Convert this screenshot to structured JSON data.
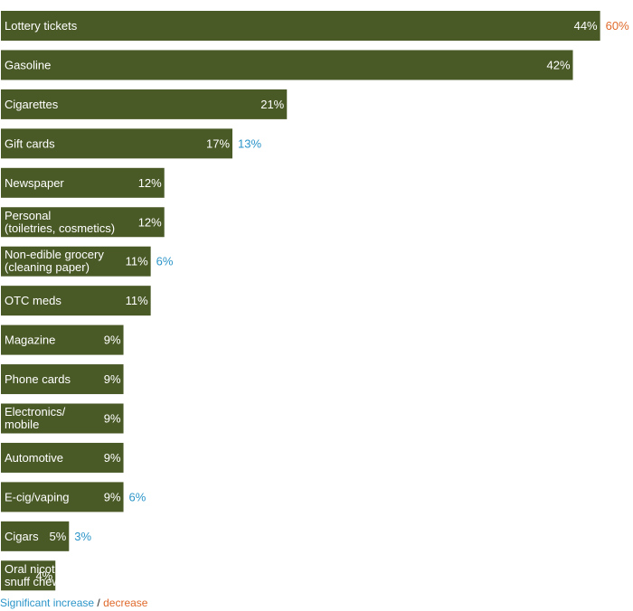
{
  "chart_data": {
    "type": "bar",
    "orientation": "horizontal",
    "xlim": [
      0,
      46
    ],
    "categories": [
      "Lottery tickets",
      "Gasoline",
      "Cigarettes",
      "Gift cards",
      "Newspaper",
      "Personal\n(toiletries, cosmetics)",
      "Non-edible grocery\n(cleaning paper)",
      "OTC meds",
      "Magazine",
      "Phone cards",
      "Electronics/\nmobile",
      "Automotive",
      "E-cig/vaping",
      "Cigars",
      "Oral nicotine,\nsnuff chew"
    ],
    "values": [
      44,
      42,
      21,
      17,
      12,
      12,
      11,
      11,
      9,
      9,
      9,
      9,
      9,
      5,
      4
    ],
    "value_labels": [
      "44%",
      "42%",
      "21%",
      "17%",
      "12%",
      "12%",
      "11%",
      "11%",
      "9%",
      "9%",
      "9%",
      "9%",
      "9%",
      "5%",
      "4%"
    ],
    "changes": [
      {
        "label": "60%",
        "kind": "decrease"
      },
      null,
      null,
      {
        "label": "13%",
        "kind": "increase"
      },
      null,
      null,
      {
        "label": "6%",
        "kind": "increase"
      },
      null,
      null,
      null,
      null,
      null,
      {
        "label": "6%",
        "kind": "increase"
      },
      {
        "label": "3%",
        "kind": "increase"
      },
      null
    ],
    "legend": {
      "increase": "Significant increase",
      "separator": "/",
      "decrease": "decrease"
    },
    "colors": {
      "bar": "#4a5a27",
      "bar_text": "#ffffff",
      "increase": "#2c95c9",
      "decrease": "#e06a2c"
    }
  }
}
